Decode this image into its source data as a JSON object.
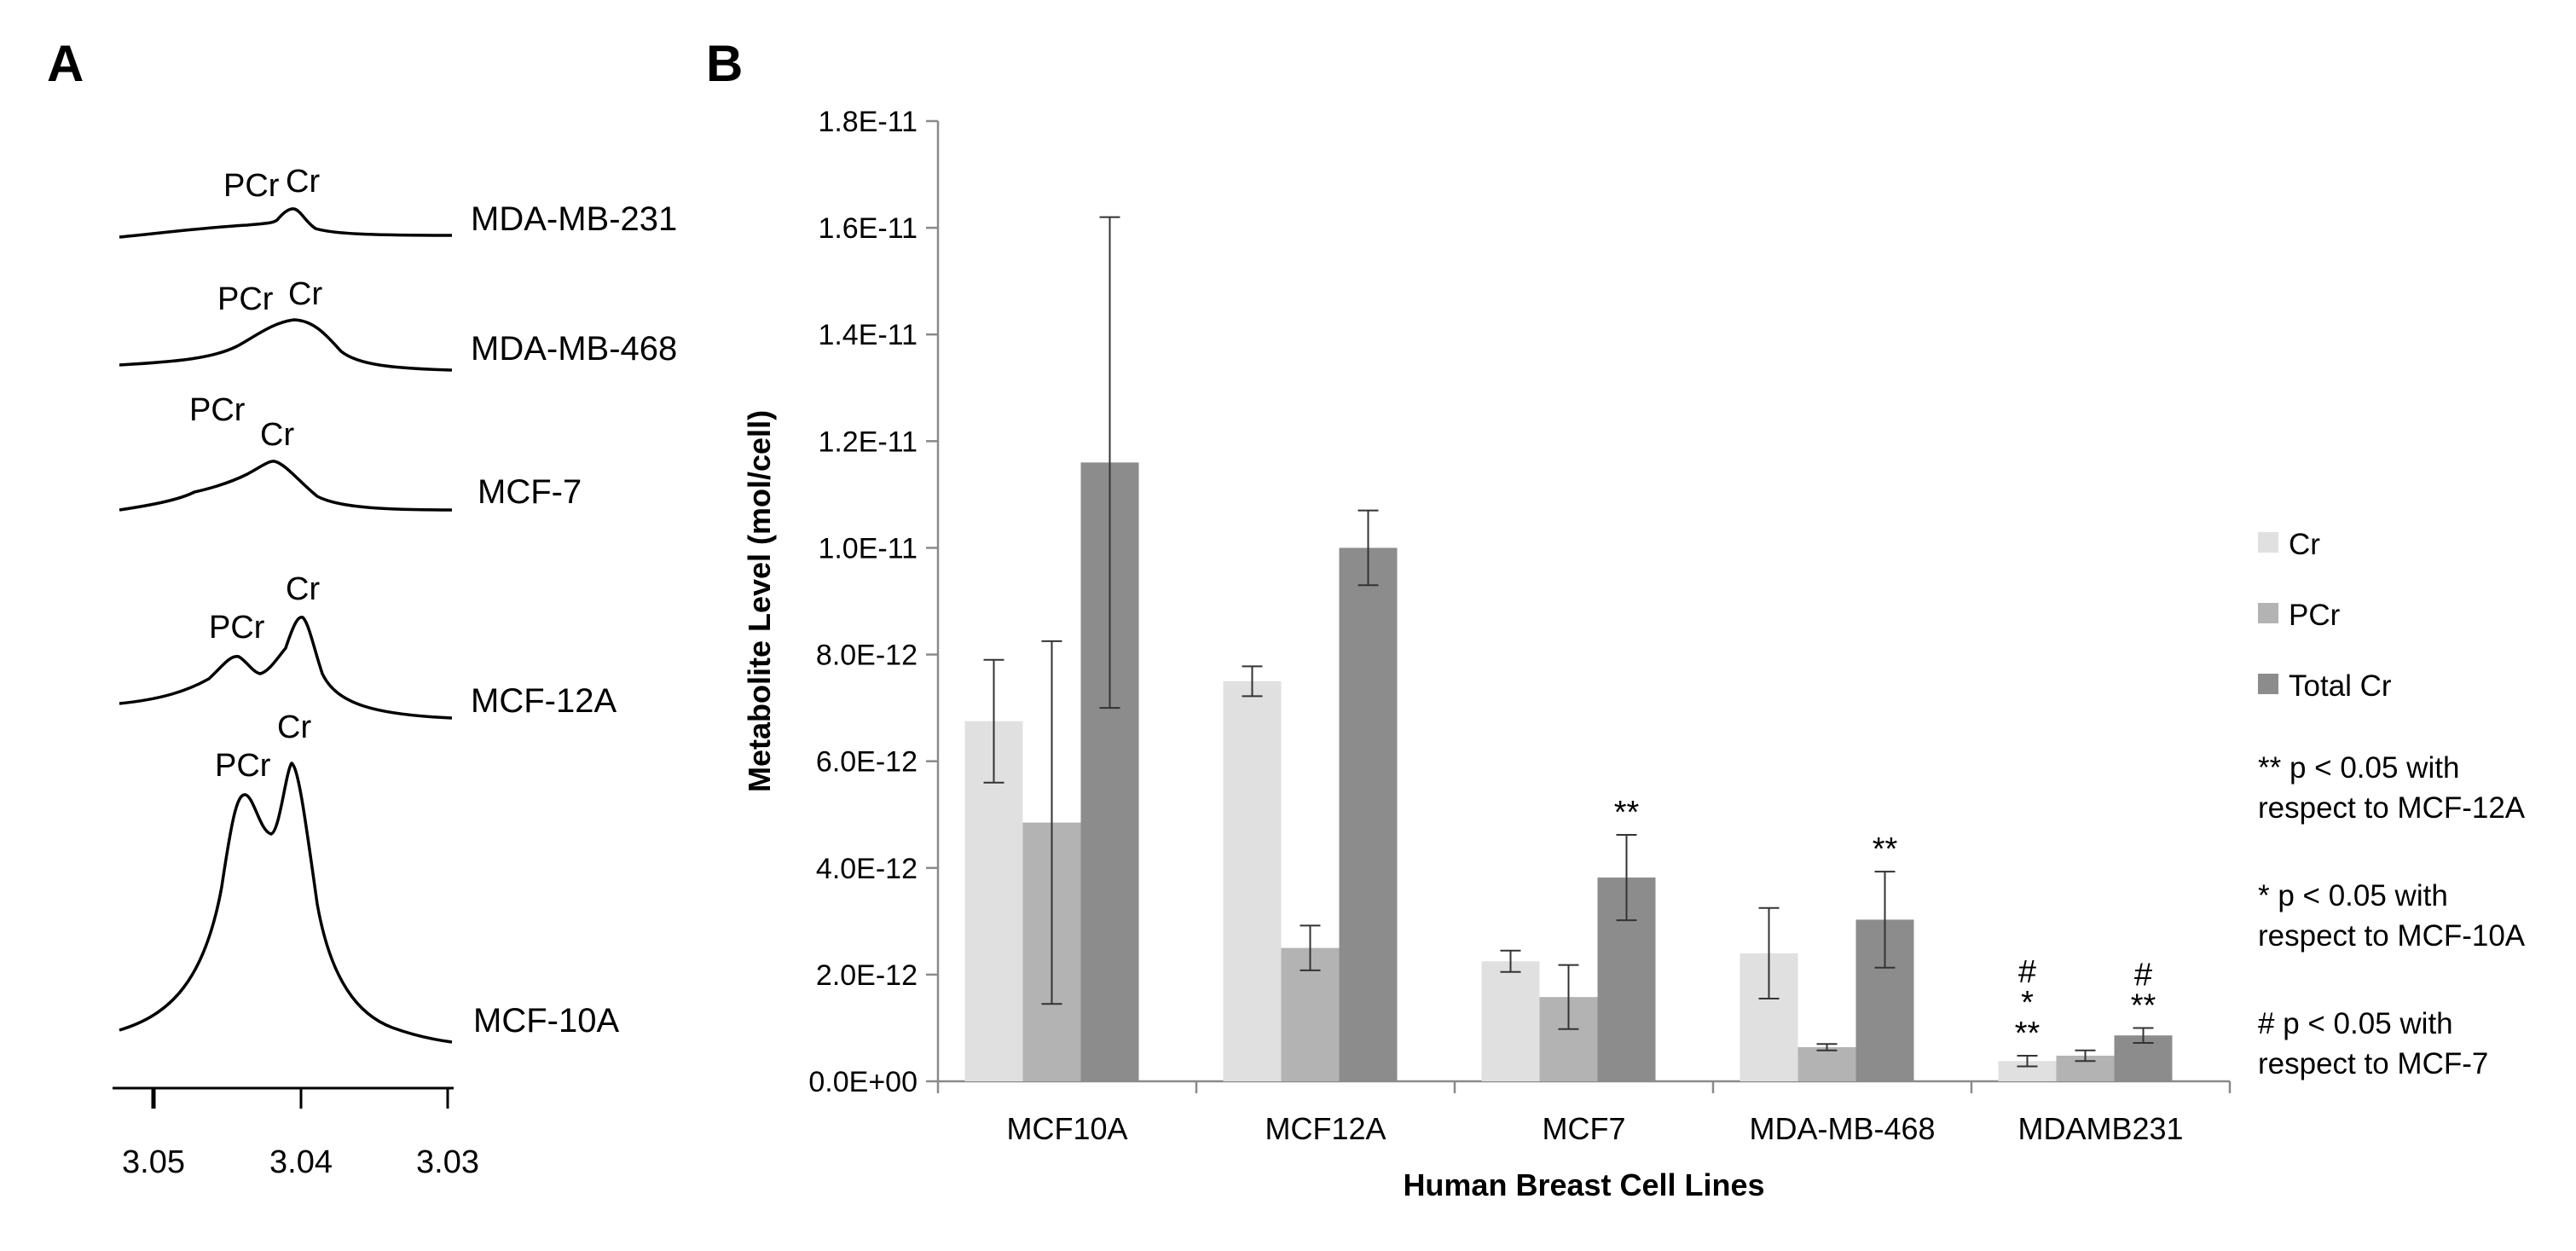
{
  "panel_a": {
    "letter": "A",
    "spectra": [
      {
        "name": "MDA-MB-231",
        "pcr_label": "PCr",
        "cr_label": "Cr"
      },
      {
        "name": "MDA-MB-468",
        "pcr_label": "PCr",
        "cr_label": "Cr"
      },
      {
        "name": "MCF-7",
        "pcr_label": "PCr",
        "cr_label": "Cr"
      },
      {
        "name": "MCF-12A",
        "pcr_label": "PCr",
        "cr_label": "Cr"
      },
      {
        "name": "MCF-10A",
        "pcr_label": "PCr",
        "cr_label": "Cr"
      }
    ],
    "ppm_axis": {
      "ticks": [
        "3.05",
        "3.04",
        "3.03"
      ]
    }
  },
  "chart_data": {
    "type": "bar",
    "panel": "B",
    "title": "",
    "xlabel": "Human Breast Cell Lines",
    "ylabel": "Metabolite Level (mol/cell)",
    "ylim": [
      0,
      1.8e-11
    ],
    "yticks": [
      0,
      2e-12,
      4e-12,
      6e-12,
      8e-12,
      1e-11,
      1.2e-11,
      1.4e-11,
      1.6e-11,
      1.8e-11
    ],
    "ytick_labels": [
      "0.0E+00",
      "2.0E-12",
      "4.0E-12",
      "6.0E-12",
      "8.0E-12",
      "1.0E-11",
      "1.2E-11",
      "1.4E-11",
      "1.6E-11",
      "1.8E-11"
    ],
    "grid": false,
    "categories": [
      "MCF10A",
      "MCF12A",
      "MCF7",
      "MDA-MB-468",
      "MDAMB231"
    ],
    "series": [
      {
        "name": "Cr",
        "color": "#e0e0e0",
        "values": [
          6.75e-12,
          7.5e-12,
          2.25e-12,
          2.4e-12,
          3.8e-13
        ],
        "errors": [
          1.15e-12,
          2.8e-13,
          2e-13,
          8.5e-13,
          1e-13
        ]
      },
      {
        "name": "PCr",
        "color": "#b3b3b3",
        "values": [
          4.85e-12,
          2.5e-12,
          1.58e-12,
          6.4e-13,
          4.8e-13
        ],
        "errors": [
          3.4e-12,
          4.2e-13,
          6e-13,
          6e-14,
          1e-13
        ]
      },
      {
        "name": "Total Cr",
        "color": "#8c8c8c",
        "values": [
          1.16e-11,
          1e-11,
          3.82e-12,
          3.03e-12,
          8.6e-13
        ],
        "errors": [
          4.6e-12,
          7e-13,
          8e-13,
          9e-13,
          1.4e-13
        ]
      }
    ],
    "significance": [
      {
        "category": "MCF7",
        "series": "Total Cr",
        "marks": [
          "**"
        ]
      },
      {
        "category": "MDA-MB-468",
        "series": "Total Cr",
        "marks": [
          "**"
        ]
      },
      {
        "category": "MDAMB231",
        "series": "Cr",
        "marks": [
          "#",
          "*",
          "**"
        ]
      },
      {
        "category": "MDAMB231",
        "series": "Total Cr",
        "marks": [
          "#",
          "**"
        ]
      }
    ],
    "legend_position": "right",
    "notes": [
      [
        "** p < 0.05 with",
        "respect to MCF-12A"
      ],
      [
        "* p < 0.05 with",
        "respect to MCF-10A"
      ],
      [
        "# p < 0.05 with",
        "respect to MCF-7"
      ]
    ]
  }
}
